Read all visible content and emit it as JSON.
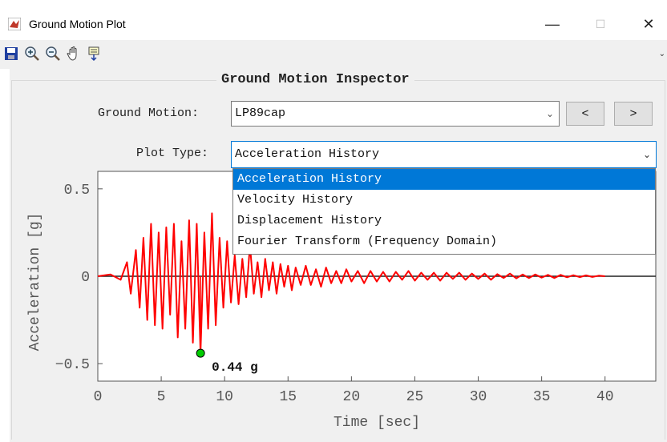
{
  "window": {
    "title": "Ground Motion Plot",
    "minimize": "—",
    "maximize": "☐",
    "close": "✕"
  },
  "toolbar": {
    "icons": [
      "save-icon",
      "zoom-in-icon",
      "zoom-out-icon",
      "pan-hand-icon",
      "data-cursor-icon"
    ],
    "overflow": "⌄"
  },
  "panel": {
    "title": "Ground Motion Inspector"
  },
  "ground_motion": {
    "label": "Ground Motion:",
    "value": "LP89cap",
    "prev": "<",
    "next": ">"
  },
  "plot_type": {
    "label": "Plot Type:",
    "value": "Acceleration History",
    "options": [
      "Acceleration History",
      "Velocity History",
      "Displacement History",
      "Fourier Transform (Frequency Domain)"
    ],
    "selected_index": 0
  },
  "chart_data": {
    "type": "line",
    "xlabel": "Time [sec]",
    "ylabel": "Acceleration [g]",
    "xlim": [
      0,
      44
    ],
    "ylim": [
      -0.6,
      0.6
    ],
    "xticks": [
      0,
      5,
      10,
      15,
      20,
      25,
      30,
      35,
      40
    ],
    "yticks": [
      {
        "value": 0.5,
        "label": "0.5"
      },
      {
        "value": 0,
        "label": "0"
      },
      {
        "value": -0.5,
        "label": "−0.5"
      }
    ],
    "series_color": "#ff0000",
    "peak": {
      "x": 8.1,
      "y": -0.44,
      "label": "0.44 g",
      "marker_color": "#00cc00"
    },
    "x": [
      0,
      1,
      1.8,
      2.3,
      2.6,
      3,
      3.3,
      3.6,
      3.9,
      4.2,
      4.5,
      4.8,
      5.1,
      5.4,
      5.7,
      6,
      6.3,
      6.6,
      6.9,
      7.2,
      7.5,
      7.8,
      8.1,
      8.4,
      8.7,
      9,
      9.3,
      9.6,
      9.9,
      10.2,
      10.5,
      10.8,
      11.1,
      11.4,
      11.7,
      12,
      12.3,
      12.6,
      12.9,
      13.2,
      13.5,
      13.8,
      14.1,
      14.4,
      14.7,
      15,
      15.3,
      15.6,
      16,
      16.4,
      16.8,
      17.2,
      17.6,
      18,
      18.4,
      18.8,
      19.2,
      19.6,
      20,
      20.5,
      21,
      21.5,
      22,
      22.5,
      23,
      23.5,
      24,
      24.5,
      25,
      25.5,
      26,
      26.5,
      27,
      27.5,
      28,
      28.5,
      29,
      29.5,
      30,
      30.5,
      31,
      31.5,
      32,
      32.5,
      33,
      33.5,
      34,
      34.5,
      35,
      35.5,
      36,
      36.5,
      37,
      37.5,
      38,
      38.5,
      39,
      39.5,
      40
    ],
    "y": [
      0,
      0.01,
      -0.02,
      0.08,
      -0.1,
      0.15,
      -0.18,
      0.22,
      -0.25,
      0.3,
      -0.28,
      0.25,
      -0.3,
      0.28,
      -0.22,
      0.3,
      -0.35,
      0.2,
      -0.3,
      0.32,
      -0.38,
      0.3,
      -0.44,
      0.25,
      -0.3,
      0.36,
      -0.28,
      0.22,
      -0.18,
      0.2,
      -0.15,
      0.12,
      -0.16,
      0.1,
      -0.12,
      0.18,
      -0.1,
      0.08,
      -0.12,
      0.1,
      -0.08,
      0.08,
      -0.1,
      0.07,
      -0.06,
      0.06,
      -0.08,
      0.05,
      -0.05,
      0.06,
      -0.05,
      0.04,
      -0.06,
      0.05,
      -0.04,
      0.03,
      -0.04,
      0.04,
      -0.03,
      0.03,
      -0.04,
      0.03,
      -0.03,
      0.025,
      -0.03,
      0.025,
      -0.02,
      0.03,
      -0.025,
      0.02,
      -0.02,
      0.02,
      -0.025,
      0.02,
      -0.015,
      0.02,
      -0.02,
      0.015,
      -0.015,
      0.015,
      -0.02,
      0.012,
      -0.01,
      0.015,
      -0.012,
      0.01,
      -0.01,
      0.01,
      -0.008,
      0.008,
      -0.01,
      0.008,
      -0.006,
      0.006,
      -0.005,
      0.005,
      -0.004,
      0.003,
      0
    ]
  }
}
